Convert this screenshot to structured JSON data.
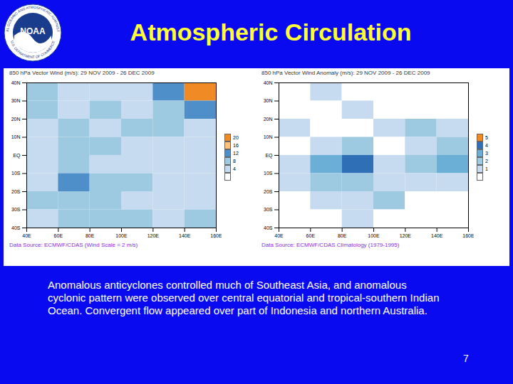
{
  "logo": {
    "name": "NOAA",
    "ring_top": "NATIONAL OCEANIC AND ATMOSPHERIC ADMINISTRATION",
    "ring_bottom": "U.S. DEPARTMENT OF COMMERCE"
  },
  "title": "Atmospheric Circulation",
  "chart_data": [
    {
      "type": "heatmap",
      "title": "850 hPa Vector Wind (m/s): 29 NOV 2009 - 26 DEC 2009",
      "source": "Data Source: ECMWF/CDAS (Wind Scale = 2 m/s)",
      "xlim": [
        40,
        160
      ],
      "xticks": [
        {
          "value": 40,
          "label": "40E"
        },
        {
          "value": 60,
          "label": "60E"
        },
        {
          "value": 80,
          "label": "80E"
        },
        {
          "value": 100,
          "label": "100E"
        },
        {
          "value": 120,
          "label": "120E"
        },
        {
          "value": 140,
          "label": "140E"
        },
        {
          "value": 160,
          "label": "160E"
        }
      ],
      "ylim": [
        -40,
        40
      ],
      "yticks": [
        {
          "value": 40,
          "label": "40N"
        },
        {
          "value": 30,
          "label": "30N"
        },
        {
          "value": 20,
          "label": "20N"
        },
        {
          "value": 10,
          "label": "10N"
        },
        {
          "value": 0,
          "label": "EQ"
        },
        {
          "value": -10,
          "label": "10S"
        },
        {
          "value": -20,
          "label": "20S"
        },
        {
          "value": -30,
          "label": "30S"
        },
        {
          "value": -40,
          "label": "40S"
        }
      ],
      "lon_edges": [
        40,
        60,
        80,
        100,
        120,
        140,
        160
      ],
      "lat_edges": [
        40,
        30,
        20,
        10,
        0,
        -10,
        -20,
        -30,
        -40
      ],
      "cells": [
        [
          8,
          4,
          4,
          4,
          12,
          20
        ],
        [
          8,
          4,
          8,
          4,
          8,
          12
        ],
        [
          4,
          8,
          4,
          8,
          8,
          4
        ],
        [
          4,
          8,
          8,
          4,
          4,
          4
        ],
        [
          4,
          8,
          4,
          4,
          4,
          4
        ],
        [
          4,
          12,
          8,
          8,
          4,
          4
        ],
        [
          8,
          8,
          8,
          4,
          4,
          4
        ],
        [
          4,
          8,
          8,
          8,
          4,
          8
        ]
      ],
      "colorbar_ticks": [
        4,
        8,
        12,
        16,
        20
      ],
      "colors": [
        "#ffffff",
        "#c6dbef",
        "#9ecae1",
        "#4f8fc9",
        "#fdc27a",
        "#f08a24"
      ]
    },
    {
      "type": "heatmap",
      "title": "850 hPa Vector Wind Anomaly (m/s): 29 NOV 2009 - 26 DEC 2009",
      "source": "Data Source: ECMWF/CDAS Climatology (1979-1995)",
      "xlim": [
        40,
        160
      ],
      "xticks": [
        {
          "value": 40,
          "label": "40E"
        },
        {
          "value": 60,
          "label": "60E"
        },
        {
          "value": 80,
          "label": "80E"
        },
        {
          "value": 100,
          "label": "100E"
        },
        {
          "value": 120,
          "label": "120E"
        },
        {
          "value": 140,
          "label": "140E"
        },
        {
          "value": 160,
          "label": "160E"
        }
      ],
      "ylim": [
        -40,
        40
      ],
      "yticks": [
        {
          "value": 40,
          "label": "40N"
        },
        {
          "value": 30,
          "label": "30N"
        },
        {
          "value": 20,
          "label": "20N"
        },
        {
          "value": 10,
          "label": "10N"
        },
        {
          "value": 0,
          "label": "EQ"
        },
        {
          "value": -10,
          "label": "10S"
        },
        {
          "value": -20,
          "label": "20S"
        },
        {
          "value": -30,
          "label": "30S"
        },
        {
          "value": -40,
          "label": "40S"
        }
      ],
      "lon_edges": [
        40,
        60,
        80,
        100,
        120,
        140,
        160
      ],
      "lat_edges": [
        40,
        30,
        20,
        10,
        0,
        -10,
        -20,
        -30,
        -40
      ],
      "cells": [
        [
          0,
          1,
          0,
          0,
          0,
          0
        ],
        [
          0,
          0,
          1,
          0,
          0,
          0
        ],
        [
          1,
          0,
          0,
          1,
          2,
          1
        ],
        [
          0,
          1,
          2,
          0,
          1,
          2
        ],
        [
          1,
          3,
          4,
          1,
          2,
          3
        ],
        [
          1,
          2,
          2,
          1,
          1,
          1
        ],
        [
          0,
          1,
          1,
          2,
          0,
          0
        ],
        [
          0,
          0,
          1,
          0,
          0,
          0
        ]
      ],
      "colorbar_ticks": [
        1,
        2,
        3,
        4,
        5
      ],
      "colors": [
        "#ffffff",
        "#c6dbef",
        "#9ecae1",
        "#6baed6",
        "#2f6fb5",
        "#f08a24"
      ]
    }
  ],
  "caption": "Anomalous anticyclones controlled much of Southeast Asia, and anomalous cyclonic pattern were observed over central equatorial and tropical-southern Indian Ocean. Convergent flow appeared over part of Indonesia and northern Australia.",
  "page_number": "7"
}
